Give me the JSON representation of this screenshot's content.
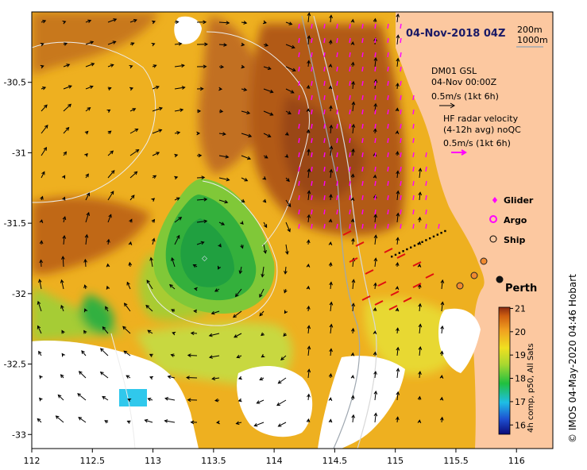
{
  "map": {
    "title": "04-Nov-2018 04Z",
    "depth_contours": [
      "200m",
      "1000m"
    ],
    "x_axis": {
      "ticks": [
        "112",
        "112.5",
        "113",
        "113.5",
        "114",
        "114.5",
        "115",
        "115.5",
        "116"
      ],
      "values": [
        112,
        112.5,
        113,
        113.5,
        114,
        114.5,
        115,
        115.5,
        116
      ],
      "range": [
        112,
        116.3
      ]
    },
    "y_axis": {
      "ticks": [
        "-30.5",
        "-31",
        "-31.5",
        "-32",
        "-32.5",
        "-33"
      ],
      "values": [
        -30.5,
        -31,
        -31.5,
        -32,
        -32.5,
        -33
      ],
      "range": [
        -33.1,
        -30.0
      ]
    },
    "model_legend": {
      "line1": "DM01 GSL",
      "line2": "04-Nov 00:00Z",
      "line3": "0.5m/s (1kt 6h)"
    },
    "hf_radar_legend": {
      "line1": "HF radar velocity",
      "line2": "(4-12h avg) noQC",
      "line3": "0.5m/s (1kt 6h)"
    },
    "symbols": {
      "glider": "Glider",
      "argo": "Argo",
      "ship": "Ship"
    },
    "city": "Perth",
    "colorbar": {
      "ticks": [
        "21",
        "20",
        "19",
        "18",
        "17",
        "16"
      ],
      "values": [
        21,
        20,
        19,
        18,
        17,
        16
      ],
      "label": "4h comp, p50, All Sats"
    },
    "credit": "© IMOS 04-May-2020 04:46 Hobart",
    "colors": {
      "land": "#fcc8a0",
      "cloud": "#ffffff",
      "hf_radar": "#ff00ff",
      "model_arrow": "#000000",
      "contour": "#e8e8e8"
    }
  }
}
